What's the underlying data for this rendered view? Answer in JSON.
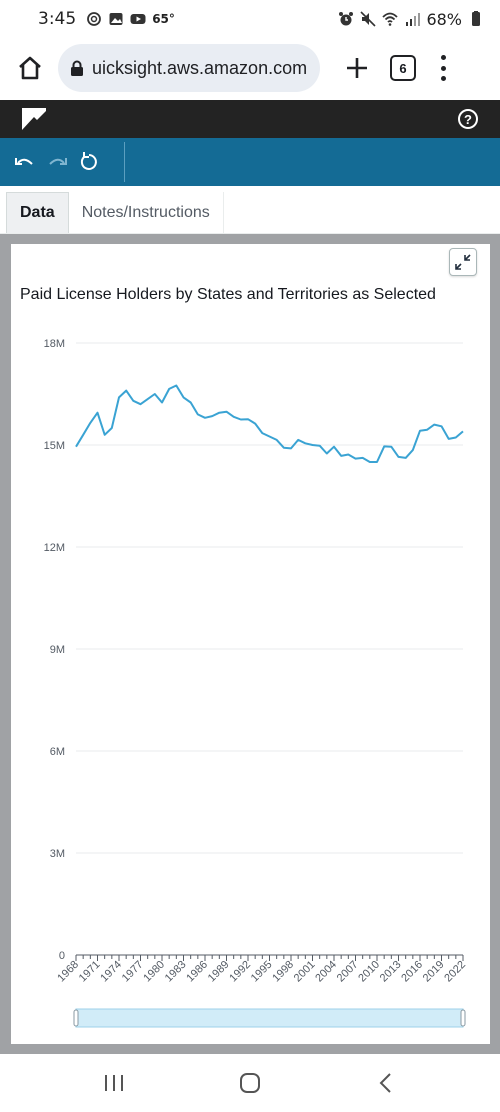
{
  "status_bar": {
    "time": "3:45",
    "temperature": "65°",
    "battery": "68%",
    "icons": [
      "threads-icon",
      "gallery-icon",
      "youtube-icon",
      "alarm-icon",
      "mute-icon",
      "wifi-icon",
      "signal-icon",
      "battery-icon"
    ]
  },
  "browser": {
    "url": "uicksight.aws.amazon.com",
    "tab_count": "6"
  },
  "app": {
    "help_label": "?"
  },
  "tabs": [
    {
      "label": "Data",
      "active": true
    },
    {
      "label": "Notes/Instructions",
      "active": false
    }
  ],
  "chart_data": {
    "type": "line",
    "title": "Paid License Holders by States and Territories as Selected",
    "xlabel": "",
    "ylabel": "",
    "ylim": [
      0,
      18000000
    ],
    "yticks": [
      0,
      3000000,
      6000000,
      9000000,
      12000000,
      15000000,
      18000000
    ],
    "ytick_labels": [
      "0",
      "3M",
      "6M",
      "9M",
      "12M",
      "15M",
      "18M"
    ],
    "xticks": [
      1968,
      1971,
      1974,
      1977,
      1980,
      1983,
      1986,
      1989,
      1992,
      1995,
      1998,
      2001,
      2004,
      2007,
      2010,
      2013,
      2016,
      2019,
      2022
    ],
    "xtick_labels": [
      "1968",
      "1971",
      "1974",
      "1977",
      "1980",
      "1983",
      "1986",
      "1989",
      "1992",
      "1995",
      "1998",
      "2001",
      "2004",
      "2007",
      "2010",
      "2013",
      "2016",
      "2019",
      "2022"
    ],
    "grid": true,
    "color": "#3aa3d3",
    "x": [
      1968,
      1969,
      1970,
      1971,
      1972,
      1973,
      1974,
      1975,
      1976,
      1977,
      1978,
      1979,
      1980,
      1981,
      1982,
      1983,
      1984,
      1985,
      1986,
      1987,
      1988,
      1989,
      1990,
      1991,
      1992,
      1993,
      1994,
      1995,
      1996,
      1997,
      1998,
      1999,
      2000,
      2001,
      2002,
      2003,
      2004,
      2005,
      2006,
      2007,
      2008,
      2009,
      2010,
      2011,
      2012,
      2013,
      2014,
      2015,
      2016,
      2017,
      2018,
      2019,
      2020,
      2021,
      2022
    ],
    "values": [
      14950000,
      15300000,
      15650000,
      15950000,
      15300000,
      15500000,
      16400000,
      16600000,
      16300000,
      16200000,
      16350000,
      16500000,
      16250000,
      16650000,
      16750000,
      16400000,
      16250000,
      15900000,
      15800000,
      15850000,
      15950000,
      15980000,
      15830000,
      15750000,
      15760000,
      15630000,
      15350000,
      15250000,
      15150000,
      14920000,
      14900000,
      15150000,
      15050000,
      15000000,
      14980000,
      14750000,
      14950000,
      14680000,
      14720000,
      14600000,
      14620000,
      14500000,
      14500000,
      14960000,
      14950000,
      14650000,
      14620000,
      14850000,
      15420000,
      15450000,
      15600000,
      15550000,
      15180000,
      15220000,
      15400000
    ]
  },
  "scroll_range": {
    "start": 0,
    "end": 1
  }
}
